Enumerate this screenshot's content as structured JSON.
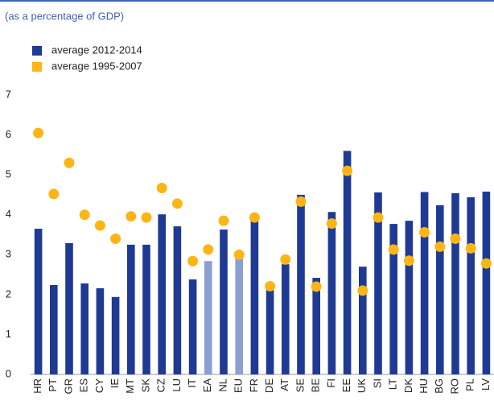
{
  "chart_data": {
    "type": "bar_dot",
    "subtitle": "(as a percentage of GDP)",
    "categories": [
      "HR",
      "PT",
      "GR",
      "ES",
      "CY",
      "IE",
      "MT",
      "SK",
      "CZ",
      "LU",
      "IT",
      "EA",
      "NL",
      "EU",
      "FR",
      "DE",
      "AT",
      "SE",
      "BE",
      "FI",
      "EE",
      "UK",
      "SI",
      "LT",
      "DK",
      "HU",
      "BG",
      "RO",
      "PL",
      "LV"
    ],
    "series": [
      {
        "name": "average 2012-2014",
        "color": "#1f3a93",
        "point_colors": [
          "#1f3a93",
          "#1f3a93",
          "#1f3a93",
          "#1f3a93",
          "#1f3a93",
          "#1f3a93",
          "#1f3a93",
          "#1f3a93",
          "#1f3a93",
          "#1f3a93",
          "#1f3a93",
          "#8c9fd2",
          "#1f3a93",
          "#8c9fd2",
          "#1f3a93",
          "#1f3a93",
          "#1f3a93",
          "#1f3a93",
          "#1f3a93",
          "#1f3a93",
          "#1f3a93",
          "#1f3a93",
          "#1f3a93",
          "#1f3a93",
          "#1f3a93",
          "#1f3a93",
          "#1f3a93",
          "#1f3a93",
          "#1f3a93",
          "#1f3a93"
        ],
        "values": [
          3.65,
          2.24,
          3.29,
          2.28,
          2.16,
          1.94,
          3.25,
          3.25,
          4.01,
          3.71,
          2.38,
          2.84,
          3.63,
          2.92,
          3.87,
          2.2,
          2.76,
          4.5,
          2.42,
          4.07,
          5.6,
          2.7,
          4.56,
          3.77,
          3.85,
          4.57,
          4.24,
          4.54,
          4.44,
          4.58
        ]
      },
      {
        "name": "average 1995-2007",
        "color": "#fdb515",
        "values": [
          6.05,
          4.52,
          5.3,
          4.0,
          3.73,
          3.4,
          3.96,
          3.93,
          4.67,
          4.28,
          2.84,
          3.13,
          3.85,
          3.0,
          3.93,
          2.21,
          2.88,
          4.33,
          2.2,
          3.78,
          5.1,
          2.1,
          3.93,
          3.13,
          2.85,
          3.56,
          3.2,
          3.4,
          3.16,
          2.78
        ]
      }
    ],
    "ylim": [
      0,
      7
    ],
    "yticks": [
      0,
      1,
      2,
      3,
      4,
      5,
      6,
      7
    ],
    "grid": false
  }
}
